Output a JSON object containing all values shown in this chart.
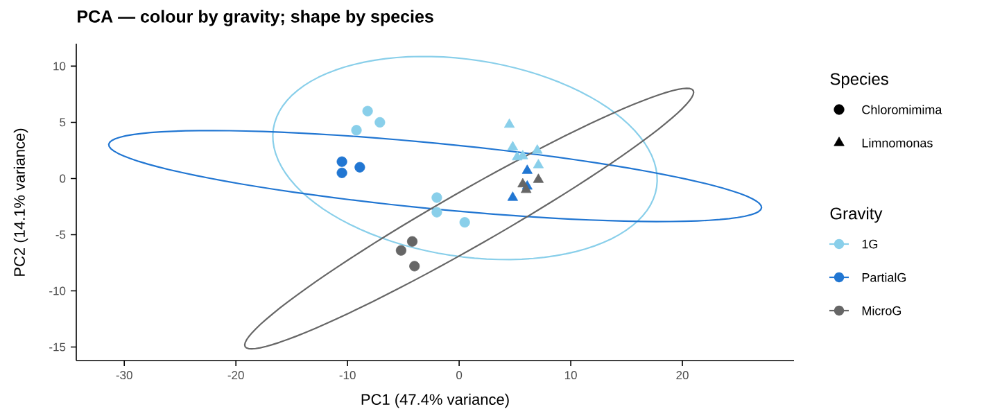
{
  "chart_data": {
    "type": "scatter",
    "title": "PCA — colour by gravity; shape by species",
    "xlabel": "PC1 (47.4% variance)",
    "ylabel": "PC2 (14.1% variance)",
    "legend_title": "Gravity",
    "annotations": [
      "Species",
      "Chloromimima",
      "Limnomonas"
    ],
    "xlim": [
      -34.3,
      30
    ],
    "ylim": [
      -16.2,
      12
    ],
    "xticks": [
      -30,
      -20,
      -10,
      0,
      10,
      20
    ],
    "yticks": [
      -15,
      -10,
      -5,
      0,
      5,
      10
    ],
    "grid": false,
    "legend": "right",
    "series": [
      {
        "name": "1G",
        "color": "#89cfea",
        "marker": "circle",
        "x": [
          -8.2,
          -7.1,
          -9.2,
          -2.0,
          -2.0,
          0.5
        ],
        "values": [
          6.0,
          5.0,
          4.3,
          -1.7,
          -3.0,
          -3.9
        ]
      },
      {
        "color": "#89cfea",
        "marker": "triangle",
        "x": [
          4.5,
          4.8,
          5.7,
          5.2,
          7.0,
          7.1
        ],
        "values": [
          4.8,
          2.8,
          2.0,
          1.9,
          2.5,
          1.2
        ]
      },
      {
        "name": "PartialG",
        "color": "#2176d2",
        "marker": "circle",
        "x": [
          -10.5,
          -10.5,
          -8.9
        ],
        "values": [
          1.5,
          0.5,
          1.0
        ]
      },
      {
        "color": "#2176d2",
        "marker": "triangle",
        "x": [
          6.1,
          6.1,
          4.8
        ],
        "values": [
          0.7,
          -0.7,
          -1.7
        ]
      },
      {
        "name": "MicroG",
        "color": "#666666",
        "marker": "circle",
        "x": [
          -4.2,
          -5.2,
          -4.0
        ],
        "values": [
          -5.6,
          -6.4,
          -7.8
        ]
      },
      {
        "color": "#666666",
        "marker": "triangle",
        "x": [
          5.7,
          6.0,
          7.1
        ],
        "values": [
          -0.5,
          -1.0,
          -0.1
        ]
      }
    ]
  }
}
